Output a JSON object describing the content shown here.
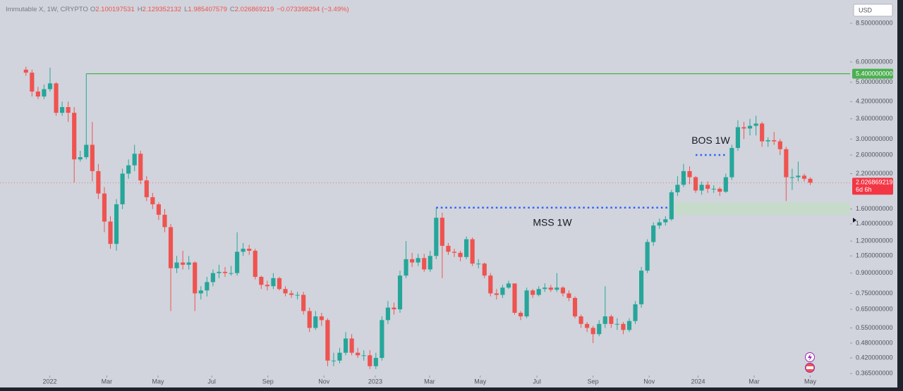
{
  "chart_data": {
    "type": "candlestick",
    "title": "Immutable X, 1W, CRYPTO",
    "ohlc_labels": {
      "open": "O",
      "high": "H",
      "low": "L",
      "close": "C"
    },
    "change": "−0.073398294 (−3.49%)",
    "currency": "USD",
    "countdown": "6d 6h",
    "up_color": "#26a69a",
    "down_color": "#ef5350",
    "log_scale": true,
    "grid": false,
    "open": [
      5.6,
      5.45,
      4.6,
      4.4,
      4.7,
      4.95,
      3.8,
      4.0,
      3.8,
      2.5,
      2.55,
      2.85,
      2.25,
      1.84,
      1.43,
      1.17,
      1.67,
      2.2,
      2.37,
      2.63,
      2.07,
      1.78,
      1.67,
      1.52,
      1.36,
      0.94,
      0.99,
      0.97,
      0.99,
      0.75,
      0.77,
      0.83,
      0.9,
      0.91,
      0.9,
      0.9,
      1.09,
      1.12,
      1.1,
      0.87,
      0.81,
      0.8,
      0.86,
      0.78,
      0.75,
      0.74,
      0.74,
      0.64,
      0.55,
      0.61,
      0.59,
      0.41,
      0.41,
      0.44,
      0.5,
      0.44,
      0.43,
      0.43,
      0.39,
      0.42,
      0.59,
      0.66,
      0.65,
      0.88,
      1.02,
      0.99,
      1.03,
      0.93,
      1.05,
      1.48,
      1.15,
      1.09,
      1.08,
      1.04,
      1.22,
      0.98,
      0.98,
      0.88,
      0.75,
      0.74,
      0.79,
      0.82,
      0.63,
      0.61,
      0.77,
      0.74,
      0.78,
      0.79,
      0.775,
      0.79,
      0.75,
      0.72,
      0.61,
      0.57,
      0.55,
      0.52,
      0.57,
      0.61,
      0.57,
      0.57,
      0.54,
      0.585,
      0.68,
      0.92,
      1.19,
      1.38,
      1.42,
      1.46,
      1.86,
      1.99,
      2.25,
      2.13,
      1.89,
      1.99,
      1.92,
      1.92,
      1.87,
      2.13,
      2.77,
      3.34,
      3.3,
      3.38,
      3.45,
      2.94,
      2.97,
      2.94,
      2.74,
      2.13,
      2.13,
      2.16,
      2.100197531
    ],
    "high": [
      5.75,
      5.6,
      4.8,
      4.9,
      5.7,
      5.0,
      4.2,
      4.2,
      4.0,
      2.7,
      5.4,
      3.5,
      2.4,
      1.95,
      1.5,
      1.75,
      2.3,
      2.5,
      2.85,
      2.7,
      2.15,
      1.85,
      1.7,
      1.6,
      1.4,
      1.05,
      1.1,
      1.05,
      1.0,
      0.8,
      0.87,
      0.93,
      0.97,
      0.95,
      0.96,
      1.3,
      1.18,
      1.16,
      1.12,
      0.88,
      0.84,
      0.9,
      0.87,
      0.8,
      0.77,
      0.76,
      0.76,
      0.66,
      0.64,
      0.63,
      0.6,
      0.44,
      0.46,
      0.53,
      0.52,
      0.46,
      0.45,
      0.45,
      0.44,
      0.61,
      0.7,
      0.69,
      0.92,
      1.2,
      1.08,
      1.07,
      1.07,
      1.1,
      1.62,
      1.55,
      1.18,
      1.12,
      1.1,
      1.25,
      1.24,
      1.02,
      0.99,
      0.9,
      0.78,
      0.81,
      0.84,
      0.82,
      0.64,
      0.79,
      0.78,
      0.8,
      0.82,
      0.81,
      0.9,
      0.8,
      0.77,
      0.73,
      0.62,
      0.58,
      0.56,
      0.59,
      0.8,
      0.62,
      0.6,
      0.58,
      0.6,
      0.7,
      0.95,
      1.22,
      1.42,
      1.47,
      1.5,
      1.9,
      2.15,
      2.4,
      2.35,
      2.15,
      2.05,
      2.05,
      1.98,
      1.95,
      2.2,
      2.85,
      3.55,
      3.5,
      3.6,
      3.7,
      3.5,
      3.05,
      3.2,
      3.0,
      2.8,
      2.3,
      2.45,
      2.2,
      2.129352132
    ],
    "low": [
      5.3,
      4.4,
      4.3,
      4.3,
      4.6,
      3.7,
      3.7,
      3.5,
      2.03,
      2.45,
      2.5,
      2.05,
      1.75,
      1.3,
      1.12,
      1.1,
      1.6,
      2.1,
      2.25,
      2.0,
      1.72,
      1.6,
      1.45,
      1.3,
      0.64,
      0.9,
      0.93,
      0.93,
      0.64,
      0.71,
      0.73,
      0.8,
      0.86,
      0.87,
      0.88,
      0.88,
      1.05,
      1.06,
      0.85,
      0.78,
      0.77,
      0.78,
      0.77,
      0.73,
      0.72,
      0.71,
      0.62,
      0.53,
      0.54,
      0.56,
      0.39,
      0.39,
      0.4,
      0.43,
      0.43,
      0.42,
      0.41,
      0.38,
      0.38,
      0.41,
      0.57,
      0.62,
      0.63,
      0.86,
      0.95,
      0.96,
      0.91,
      0.91,
      1.02,
      0.86,
      1.06,
      1.04,
      1.0,
      1.02,
      0.96,
      0.94,
      0.86,
      0.73,
      0.71,
      0.72,
      0.78,
      0.62,
      0.59,
      0.6,
      0.72,
      0.73,
      0.76,
      0.76,
      0.76,
      0.73,
      0.7,
      0.6,
      0.55,
      0.53,
      0.48,
      0.51,
      0.55,
      0.55,
      0.54,
      0.52,
      0.53,
      0.57,
      0.66,
      0.9,
      1.15,
      1.34,
      1.38,
      1.44,
      1.8,
      1.95,
      2.0,
      1.85,
      1.82,
      1.85,
      1.85,
      1.8,
      1.85,
      2.08,
      2.7,
      3.0,
      3.1,
      3.1,
      2.8,
      2.8,
      2.85,
      2.6,
      1.72,
      1.9,
      2.05,
      2.05,
      1.985407579
    ],
    "close": [
      5.45,
      4.6,
      4.4,
      4.7,
      4.95,
      3.8,
      4.0,
      3.8,
      2.5,
      2.55,
      2.85,
      2.25,
      1.84,
      1.43,
      1.17,
      1.67,
      2.2,
      2.37,
      2.63,
      2.07,
      1.78,
      1.67,
      1.52,
      1.36,
      0.94,
      0.99,
      0.97,
      0.99,
      0.75,
      0.77,
      0.83,
      0.9,
      0.91,
      0.9,
      0.9,
      1.09,
      1.12,
      1.1,
      0.87,
      0.81,
      0.8,
      0.86,
      0.78,
      0.75,
      0.74,
      0.74,
      0.64,
      0.55,
      0.61,
      0.59,
      0.41,
      0.41,
      0.44,
      0.5,
      0.44,
      0.43,
      0.43,
      0.39,
      0.42,
      0.59,
      0.66,
      0.65,
      0.88,
      1.02,
      0.99,
      1.03,
      0.93,
      1.05,
      1.48,
      1.15,
      1.09,
      1.08,
      1.04,
      1.22,
      0.98,
      0.98,
      0.88,
      0.75,
      0.74,
      0.79,
      0.82,
      0.63,
      0.61,
      0.77,
      0.74,
      0.78,
      0.79,
      0.775,
      0.79,
      0.75,
      0.72,
      0.61,
      0.57,
      0.55,
      0.52,
      0.57,
      0.61,
      0.57,
      0.57,
      0.54,
      0.585,
      0.68,
      0.92,
      1.19,
      1.38,
      1.42,
      1.46,
      1.86,
      1.99,
      2.25,
      2.13,
      1.89,
      1.99,
      1.92,
      1.92,
      1.87,
      2.13,
      2.77,
      3.34,
      3.3,
      3.38,
      3.45,
      2.94,
      2.97,
      2.94,
      2.74,
      2.13,
      2.13,
      2.16,
      2.100267513,
      2.026869219
    ],
    "xlim": [
      -4.3,
      136.6
    ],
    "xticks": [
      {
        "value": 3.95,
        "label": "2022"
      },
      {
        "value": 13.4,
        "label": "Mar"
      },
      {
        "value": 21.9,
        "label": "May"
      },
      {
        "value": 30.8,
        "label": "Jul"
      },
      {
        "value": 40.1,
        "label": "Sep"
      },
      {
        "value": 49.4,
        "label": "Nov"
      },
      {
        "value": 57.9,
        "label": "2023"
      },
      {
        "value": 66.9,
        "label": "Mar"
      },
      {
        "value": 75.3,
        "label": "May"
      },
      {
        "value": 84.7,
        "label": "Jul"
      },
      {
        "value": 94.0,
        "label": "Sep"
      },
      {
        "value": 103.3,
        "label": "Nov"
      },
      {
        "value": 111.4,
        "label": "2024"
      },
      {
        "value": 120.7,
        "label": "Mar"
      },
      {
        "value": 130,
        "label": "May"
      }
    ],
    "ylim": [
      0.322,
      10.47
    ],
    "yticks": [
      {
        "value": 8.5,
        "label": "8.500000000"
      },
      {
        "value": 6,
        "label": "6.000000000"
      },
      {
        "value": 5,
        "label": "5.000000000"
      },
      {
        "value": 4.2,
        "label": "4.200000000"
      },
      {
        "value": 3.6,
        "label": "3.600000000"
      },
      {
        "value": 3,
        "label": "3.000000000"
      },
      {
        "value": 2.6,
        "label": "2.600000000"
      },
      {
        "value": 2.2,
        "label": "2.200000000"
      },
      {
        "value": 1.6,
        "label": "1.600000000"
      },
      {
        "value": 1.4,
        "label": "1.400000000"
      },
      {
        "value": 1.2,
        "label": "1.200000000"
      },
      {
        "value": 1.05,
        "label": "1.050000000"
      },
      {
        "value": 0.9,
        "label": "0.900000000"
      },
      {
        "value": 0.75,
        "label": "0.750000000"
      },
      {
        "value": 0.65,
        "label": "0.650000000"
      },
      {
        "value": 0.55,
        "label": "0.550000000"
      },
      {
        "value": 0.48,
        "label": "0.480000000"
      },
      {
        "value": 0.42,
        "label": "0.420000000"
      },
      {
        "value": 0.365,
        "label": "0.365000000"
      }
    ],
    "level_line": {
      "value": 5.4,
      "label": "5.400000000",
      "from": 10,
      "color": "#4caf50"
    },
    "annotations": [
      {
        "label": "MSS 1W",
        "value": 1.62,
        "from": 68,
        "to": 106.5,
        "color": "#2962ff"
      },
      {
        "label": "BOS 1W",
        "value": 2.6,
        "from": 111,
        "to": 116,
        "color": "#2962ff"
      }
    ],
    "zone": {
      "low": 1.52,
      "high": 1.7,
      "from": 108,
      "color": "#c3dcc6"
    }
  }
}
